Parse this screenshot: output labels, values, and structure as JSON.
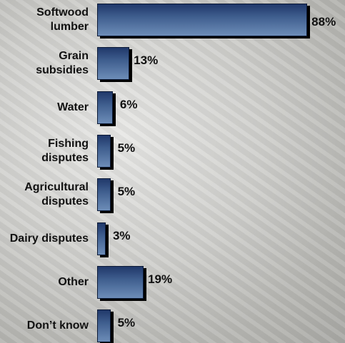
{
  "chart_data": {
    "type": "bar",
    "orientation": "horizontal",
    "categories": [
      "Softwood lumber",
      "Grain subsidies",
      "Water",
      "Fishing disputes",
      "Agricultural disputes",
      "Dairy disputes",
      "Other",
      "Don’t know"
    ],
    "values": [
      88,
      13,
      6,
      5,
      5,
      3,
      19,
      5
    ],
    "value_labels": [
      "88%",
      "13%",
      "6%",
      "5%",
      "5%",
      "3%",
      "19%",
      "5%"
    ],
    "color": "#3f5e8e"
  }
}
